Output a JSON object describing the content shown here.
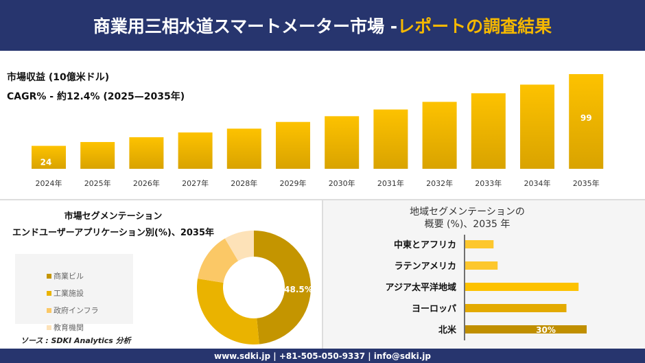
{
  "header": {
    "title_main": "商業用三相水道スマートメーター市場 -",
    "title_accent": "レポートの調査結果"
  },
  "metrics": {
    "revenue_label": "市場収益 (10億米ドル)",
    "cagr_label": "CAGR% - 約12.4% (2025—2035年)"
  },
  "chart_data": [
    {
      "type": "bar",
      "categories": [
        "2024年",
        "2025年",
        "2026年",
        "2027年",
        "2028年",
        "2029年",
        "2030年",
        "2031年",
        "2032年",
        "2033年",
        "2034年",
        "2035年"
      ],
      "values": [
        24,
        28,
        33,
        38,
        42,
        49,
        55,
        62,
        70,
        79,
        88,
        99
      ],
      "data_labels": {
        "0": "24",
        "11": "99"
      },
      "ylim": [
        0,
        99
      ],
      "grid": false,
      "color": "#f5b800"
    },
    {
      "type": "pie",
      "title": "市場セグメンテーション",
      "subtitle": "エンドユーザーアプリケーション別(%)、2035年",
      "categories": [
        "商業ビル",
        "工業施設",
        "政府インフラ",
        "教育機関"
      ],
      "values": [
        48.5,
        29,
        14,
        8.5
      ],
      "colors": [
        "#c49500",
        "#eab300",
        "#fbc866",
        "#fde2b8"
      ],
      "data_label": "48.5%",
      "legend": "left"
    },
    {
      "type": "bar",
      "orientation": "horizontal",
      "title": "地域セグメンテーションの",
      "subtitle": "概要 (%)、2035 年",
      "categories": [
        "中東とアフリカ",
        "ラテンアメリカ",
        "アジア太平洋地域",
        "ヨーロッパ",
        "北米"
      ],
      "values": [
        7,
        8,
        28,
        25,
        30
      ],
      "colors": [
        "#fdc72d",
        "#fdc72d",
        "#fdc200",
        "#e3aa00",
        "#c08f00"
      ],
      "data_label": "30%"
    }
  ],
  "source": "ソース : SDKI Analytics 分析",
  "footer": "www.sdki.jp | +81-505-050-9337 | info@sdki.jp"
}
